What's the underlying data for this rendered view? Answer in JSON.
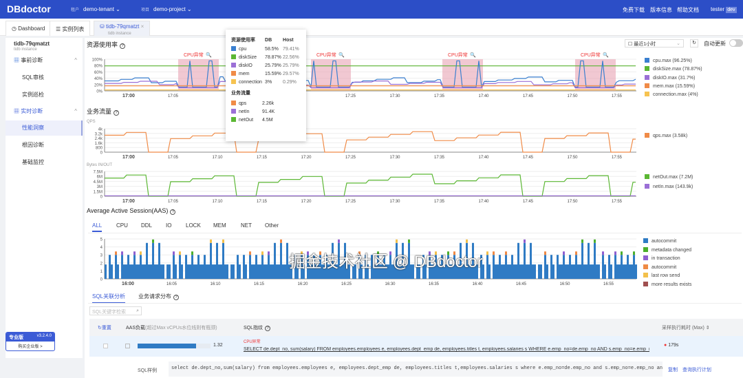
{
  "header": {
    "logo": "DBdoctor",
    "tenant_label": "租户",
    "tenant": "demo-tenant",
    "project_label": "项目",
    "project": "demo-project",
    "links": [
      "免费下载",
      "版本信息",
      "帮助文档"
    ],
    "user": "tester",
    "env_badge": "dev"
  },
  "tabs": [
    {
      "label": "Dashboard",
      "icon": "dashboard-icon"
    },
    {
      "label": "实例列表",
      "icon": "list-icon"
    },
    {
      "label": "tidb-79qmatzt",
      "sub": "tidb instance",
      "icon": "database-icon"
    }
  ],
  "sidebar": {
    "instance": "tidb-79qmatzt",
    "instance_type": "tidb instance",
    "groups": [
      {
        "label": "事前诊断",
        "items": [
          "SQL审核",
          "实例巡检"
        ]
      },
      {
        "label": "实时诊断",
        "items": [
          "性能洞察",
          "根因诊断",
          "基础监控"
        ]
      }
    ],
    "active": "性能洞察",
    "edition": "专业版",
    "version": "v3.2.4.0",
    "upgrade": "购买企业版 >"
  },
  "resource": {
    "title": "资源使用率",
    "time_range": "最近1小时",
    "auto_refresh": "自动更新",
    "anomaly_label": "CPU异常",
    "legend": [
      "cpu.max (96.25%)",
      "diskSize.max (78.87%)",
      "diskIO.max (31.7%)",
      "mem.max (15.59%)",
      "connection.max (4%)"
    ],
    "yticks": [
      "100%",
      "80%",
      "60%",
      "40%",
      "20%",
      "0%"
    ]
  },
  "times": [
    "17:00",
    "17:05",
    "17:10",
    "17:15",
    "17:20",
    "17:25",
    "17:30",
    "17:35",
    "17:40",
    "17:45",
    "17:50",
    "17:55"
  ],
  "traffic": {
    "title": "业务流量",
    "qps_label": "QPS",
    "qps_ticks": [
      "4k",
      "3.2k",
      "2.4k",
      "1.6k",
      "800",
      "0"
    ],
    "qps_legend": "qps.max (3.58k)",
    "bytes_label": "Bytes IN/OUT",
    "bytes_ticks": [
      "7.5M",
      "6M",
      "4.5M",
      "3M",
      "1.5M",
      "0"
    ],
    "bytes_legend": [
      "netOut.max (7.2M)",
      "netIn.max (143.9k)"
    ]
  },
  "tooltip": {
    "h1": "资源使用率",
    "h_db": "DB",
    "h_host": "Host",
    "rows": [
      {
        "name": "cpu",
        "db": "58.5%",
        "host": "79.41%",
        "color": "#3a7fcf"
      },
      {
        "name": "diskSize",
        "db": "78.87%",
        "host": "22.56%",
        "color": "#5bb733"
      },
      {
        "name": "diskIO",
        "db": "25.79%",
        "host": "25.79%",
        "color": "#9b6fd6"
      },
      {
        "name": "mem",
        "db": "15.59%",
        "host": "29.57%",
        "color": "#f08b47"
      },
      {
        "name": "connection",
        "db": "3%",
        "host": "0.29%",
        "color": "#f6c350"
      }
    ],
    "h2": "业务流量",
    "rows2": [
      {
        "name": "qps",
        "val": "2.26k",
        "color": "#f08b47"
      },
      {
        "name": "netIn",
        "val": "91.4K",
        "color": "#9b6fd6"
      },
      {
        "name": "netOut",
        "val": "4.5M",
        "color": "#5bb733"
      }
    ]
  },
  "aas": {
    "title": "Average Active Session(AAS)",
    "tabs": [
      "ALL",
      "CPU",
      "DDL",
      "IO",
      "LOCK",
      "MEM",
      "NET",
      "Other"
    ],
    "yticks": [
      "5",
      "4",
      "3",
      "2",
      "1",
      "0"
    ],
    "times": [
      "16:00",
      "16:05",
      "16:10",
      "16:15",
      "16:20",
      "16:25",
      "16:30",
      "16:35",
      "16:40",
      "16:45",
      "16:50",
      "16:55"
    ],
    "legend": [
      {
        "name": "autocommit",
        "color": "#2f7bc4"
      },
      {
        "name": "metadata changed",
        "color": "#4caf2c"
      },
      {
        "name": "in transaction",
        "color": "#8f5fd0"
      },
      {
        "name": "autocommit",
        "color": "#ef8a45"
      },
      {
        "name": "last row send",
        "color": "#f3c04b"
      },
      {
        "name": "more results exists",
        "color": "#a05050"
      }
    ]
  },
  "sql": {
    "tabs": [
      "SQL关联分析",
      "业务请求分布"
    ],
    "search_placeholder": "SQL关键字检索",
    "reset": "重置",
    "col_aas": "AAS负载",
    "col_aas_hint": "(超过Max vCPUs水位线则有瓶颈)",
    "col_sql": "SQL指纹",
    "col_time": "采样执行耗时 (Max)",
    "row": {
      "aas": "1.32",
      "aas_fraction": 0.8,
      "tag": "CPU异常",
      "sql": "SELECT de.dept_no, sum(salary) FROM employees.employees e, employees.dept_emp de, employees.titles t, employees.salaries s WHERE e.emp_no=de.emp_no AND s.emp_no=e.emp_no ...",
      "time": "179s"
    },
    "example_label": "SQL样例",
    "example": "select de.dept_no,sum(salary) from employees.employees e, employees.dept_emp de, employees.titles t,employees.salaries s  where e.emp_no=de.emp_no and s.emp_no=e.emp_no and de.dept_no=t.emp_no",
    "copy": "复制",
    "plan": "查询执行计划"
  },
  "watermark": "掘金技术社区 @ DBdoctor",
  "chart_data": [
    {
      "type": "line",
      "title": "资源使用率",
      "ylim": [
        0,
        100
      ],
      "x": [
        "17:00",
        "17:05",
        "17:10",
        "17:15",
        "17:20",
        "17:25",
        "17:30",
        "17:35",
        "17:40",
        "17:45",
        "17:50",
        "17:55"
      ],
      "series": [
        {
          "name": "cpu",
          "values": [
            55,
            58,
            60,
            96,
            50,
            58,
            62,
            95,
            55,
            60,
            58,
            96
          ]
        },
        {
          "name": "diskSize",
          "values": [
            79,
            79,
            79,
            79,
            79,
            79,
            79,
            79,
            79,
            79,
            79,
            79
          ]
        },
        {
          "name": "diskIO",
          "values": [
            25,
            26,
            30,
            12,
            28,
            26,
            31,
            12,
            26,
            28,
            25,
            12
          ]
        },
        {
          "name": "mem",
          "values": [
            16,
            16,
            16,
            15,
            16,
            16,
            16,
            15,
            16,
            16,
            16,
            15
          ]
        },
        {
          "name": "connection",
          "values": [
            3,
            3,
            3,
            4,
            3,
            3,
            3,
            4,
            3,
            3,
            3,
            4
          ]
        }
      ]
    },
    {
      "type": "line",
      "title": "QPS",
      "ylim": [
        0,
        4000
      ],
      "x": [
        "17:00",
        "17:05",
        "17:10",
        "17:15",
        "17:20",
        "17:25",
        "17:30",
        "17:35",
        "17:40",
        "17:45",
        "17:50",
        "17:55"
      ],
      "series": [
        {
          "name": "qps",
          "values": [
            2800,
            0,
            2200,
            3400,
            2600,
            0,
            2400,
            3300,
            2800,
            0,
            2700,
            3500
          ]
        }
      ]
    },
    {
      "type": "line",
      "title": "Bytes IN/OUT",
      "ylim": [
        0,
        7500000
      ],
      "x": [
        "17:00",
        "17:05",
        "17:10",
        "17:15",
        "17:20",
        "17:25",
        "17:30",
        "17:35",
        "17:40",
        "17:45",
        "17:50",
        "17:55"
      ],
      "series": [
        {
          "name": "netOut",
          "values": [
            5500000,
            0,
            4500000,
            7000000,
            5200000,
            0,
            4800000,
            6800000,
            5600000,
            0,
            5400000,
            7200000
          ]
        },
        {
          "name": "netIn",
          "values": [
            140000,
            0,
            120000,
            143900,
            130000,
            0,
            120000,
            140000,
            130000,
            0,
            120000,
            143900
          ]
        }
      ]
    },
    {
      "type": "area",
      "title": "AAS",
      "ylim": [
        0,
        5
      ],
      "x": [
        "16:00",
        "16:05",
        "16:10",
        "16:15",
        "16:20",
        "16:25",
        "16:30",
        "16:35",
        "16:40",
        "16:45",
        "16:50",
        "16:55"
      ],
      "series": [
        {
          "name": "autocommit",
          "values": [
            2,
            1,
            3,
            1,
            2,
            4,
            1,
            2,
            4,
            1,
            2,
            4
          ]
        }
      ]
    }
  ]
}
